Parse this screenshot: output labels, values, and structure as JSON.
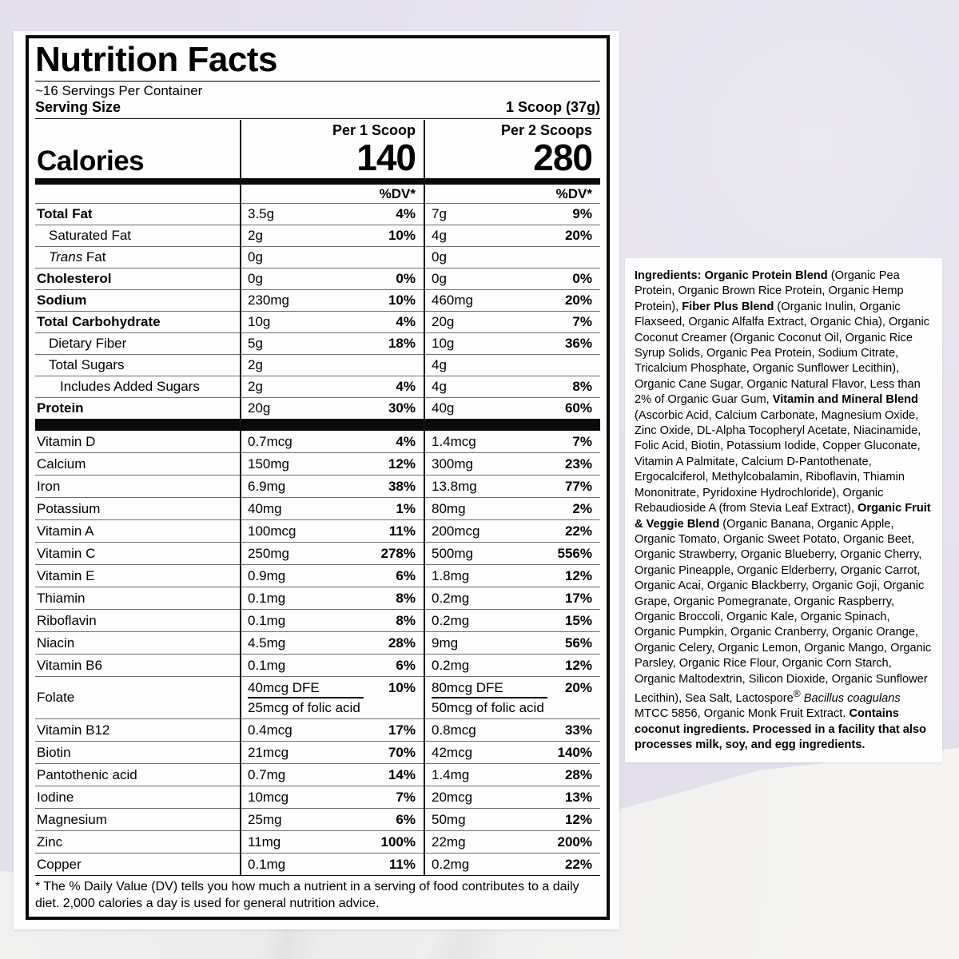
{
  "colors": {
    "background_lavender": "#e3e0ec",
    "marble_white": "#f6f5f3",
    "label_black": "#0a0a0a"
  },
  "label": {
    "title": "Nutrition Facts",
    "servings_per_container": "~16 Servings Per Container",
    "serving_size_label": "Serving Size",
    "serving_size_value": "1 Scoop (37g)",
    "calories_label": "Calories",
    "columns": [
      {
        "header": "Per 1 Scoop",
        "calories": "140",
        "dv_header": "%DV*"
      },
      {
        "header": "Per 2 Scoops",
        "calories": "280",
        "dv_header": "%DV*"
      }
    ],
    "macro_rows": [
      {
        "n": "Total Fat",
        "b": true,
        "ind": 0,
        "a1": "3.5g",
        "d1": "4%",
        "a2": "7g",
        "d2": "9%"
      },
      {
        "n": "Saturated Fat",
        "ind": 1,
        "a1": "2g",
        "d1": "10%",
        "a2": "4g",
        "d2": "20%"
      },
      {
        "n": "Trans Fat",
        "ind": 1,
        "it": true,
        "a1": "0g",
        "d1": "",
        "a2": "0g",
        "d2": ""
      },
      {
        "n": "Cholesterol",
        "b": true,
        "ind": 0,
        "a1": "0g",
        "d1": "0%",
        "a2": "0g",
        "d2": "0%"
      },
      {
        "n": "Sodium",
        "b": true,
        "ind": 0,
        "a1": "230mg",
        "d1": "10%",
        "a2": "460mg",
        "d2": "20%"
      },
      {
        "n": "Total Carbohydrate",
        "b": true,
        "ind": 0,
        "a1": "10g",
        "d1": "4%",
        "a2": "20g",
        "d2": "7%"
      },
      {
        "n": "Dietary Fiber",
        "ind": 1,
        "a1": "5g",
        "d1": "18%",
        "a2": "10g",
        "d2": "36%"
      },
      {
        "n": "Total Sugars",
        "ind": 1,
        "a1": "2g",
        "d1": "",
        "a2": "4g",
        "d2": ""
      },
      {
        "n": "Includes Added Sugars",
        "ind": 2,
        "a1": "2g",
        "d1": "4%",
        "a2": "4g",
        "d2": "8%"
      },
      {
        "n": "Protein",
        "b": true,
        "ind": 0,
        "a1": "20g",
        "d1": "30%",
        "a2": "40g",
        "d2": "60%"
      }
    ],
    "micro_rows": [
      {
        "n": "Vitamin D",
        "a1": "0.7mcg",
        "d1": "4%",
        "a2": "1.4mcg",
        "d2": "7%"
      },
      {
        "n": "Calcium",
        "a1": "150mg",
        "d1": "12%",
        "a2": "300mg",
        "d2": "23%"
      },
      {
        "n": "Iron",
        "a1": "6.9mg",
        "d1": "38%",
        "a2": "13.8mg",
        "d2": "77%"
      },
      {
        "n": "Potassium",
        "a1": "40mg",
        "d1": "1%",
        "a2": "80mg",
        "d2": "2%"
      },
      {
        "n": "Vitamin A",
        "a1": "100mcg",
        "d1": "11%",
        "a2": "200mcg",
        "d2": "22%"
      },
      {
        "n": "Vitamin C",
        "a1": "250mg",
        "d1": "278%",
        "a2": "500mg",
        "d2": "556%"
      },
      {
        "n": "Vitamin E",
        "a1": "0.9mg",
        "d1": "6%",
        "a2": "1.8mg",
        "d2": "12%"
      },
      {
        "n": "Thiamin",
        "a1": "0.1mg",
        "d1": "8%",
        "a2": "0.2mg",
        "d2": "17%"
      },
      {
        "n": "Riboflavin",
        "a1": "0.1mg",
        "d1": "8%",
        "a2": "0.2mg",
        "d2": "15%"
      },
      {
        "n": "Niacin",
        "a1": "4.5mg",
        "d1": "28%",
        "a2": "9mg",
        "d2": "56%"
      },
      {
        "n": "Vitamin B6",
        "a1": "0.1mg",
        "d1": "6%",
        "a2": "0.2mg",
        "d2": "12%"
      },
      {
        "n": "Folate",
        "a1": "40mcg DFE",
        "d1": "10%",
        "s1": "25mcg of folic acid",
        "a2": "80mcg DFE",
        "d2": "20%",
        "s2": "50mcg of folic acid"
      },
      {
        "n": "Vitamin B12",
        "a1": "0.4mcg",
        "d1": "17%",
        "a2": "0.8mcg",
        "d2": "33%"
      },
      {
        "n": "Biotin",
        "a1": "21mcg",
        "d1": "70%",
        "a2": "42mcg",
        "d2": "140%"
      },
      {
        "n": "Pantothenic acid",
        "a1": "0.7mg",
        "d1": "14%",
        "a2": "1.4mg",
        "d2": "28%"
      },
      {
        "n": "Iodine",
        "a1": "10mcg",
        "d1": "7%",
        "a2": "20mcg",
        "d2": "13%"
      },
      {
        "n": "Magnesium",
        "a1": "25mg",
        "d1": "6%",
        "a2": "50mg",
        "d2": "12%"
      },
      {
        "n": "Zinc",
        "a1": "11mg",
        "d1": "100%",
        "a2": "22mg",
        "d2": "200%"
      },
      {
        "n": "Copper",
        "a1": "0.1mg",
        "d1": "11%",
        "a2": "0.2mg",
        "d2": "22%"
      }
    ],
    "footnote": "* The % Daily Value (DV) tells you how much a nutrient in a serving of food contributes to a daily diet. 2,000 calories a day is used for general nutrition advice."
  },
  "ingredients": {
    "segments": [
      {
        "t": "Ingredients: Organic Protein Blend ",
        "b": true
      },
      {
        "t": "(Organic Pea Protein, Organic Brown Rice Protein, Organic Hemp Protein), "
      },
      {
        "t": "Fiber Plus Blend ",
        "b": true
      },
      {
        "t": "(Organic Inulin, Organic Flaxseed, Organic Alfalfa Extract, Organic Chia), Organic Coconut Creamer (Organic Coconut Oil, Organic Rice Syrup Solids, Organic Pea Protein, Sodium Citrate, Tricalcium Phosphate, Organic Sunflower Lecithin), Organic Cane Sugar, Organic Natural Flavor, Less than 2% of Organic Guar Gum, "
      },
      {
        "t": "Vitamin and Mineral Blend ",
        "b": true
      },
      {
        "t": "(Ascorbic Acid, Calcium Carbonate, Magnesium Oxide, Zinc Oxide, DL-Alpha Tocopheryl Acetate, Niacinamide, Folic Acid, Biotin, Potassium Iodide, Copper Gluconate, Vitamin A Palmitate, Calcium D-Pantothenate, Ergocalciferol, Methylcobalamin, Riboflavin, Thiamin Mononitrate, Pyridoxine Hydrochloride), Organic Rebaudioside A (from Stevia Leaf Extract), "
      },
      {
        "t": "Organic Fruit & Veggie Blend ",
        "b": true
      },
      {
        "t": "(Organic Banana, Organic Apple, Organic Tomato, Organic Sweet Potato, Organic Beet, Organic Strawberry, Organic Blueberry, Organic Cherry, Organic Pineapple, Organic Elderberry, Organic Carrot, Organic Acai, Organic Blackberry, Organic Goji, Organic Grape, Organic Pomegranate, Organic Raspberry, Organic Broccoli, Organic Kale, Organic Spinach, Organic Pumpkin, Organic Cranberry, Organic Orange, Organic Celery, Organic Lemon, Organic Mango, Organic Parsley, Organic Rice Flour, Organic Corn Starch, Organic Maltodextrin, Silicon Dioxide, Organic Sunflower Lecithin), Sea Salt, Lactospore"
      },
      {
        "t": "®",
        "sup": true
      },
      {
        "t": " "
      },
      {
        "t": "Bacillus coagulans",
        "i": true
      },
      {
        "t": " MTCC 5856, Organic Monk Fruit Extract. "
      },
      {
        "t": "Contains coconut ingredients. Processed in a facility that also processes milk, soy, and egg ingredients.",
        "b": true
      }
    ]
  }
}
